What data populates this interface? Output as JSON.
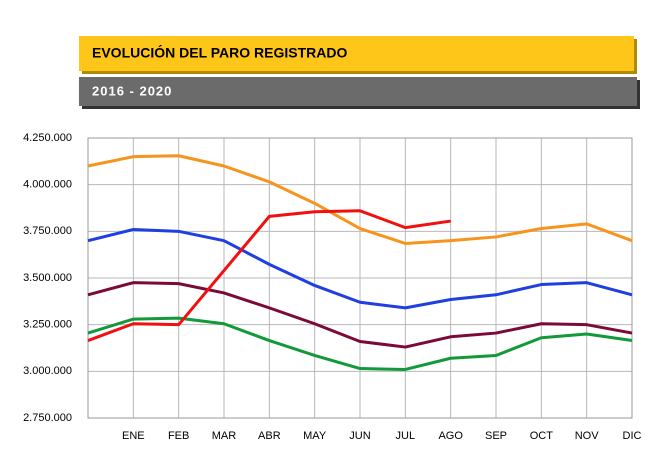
{
  "chart_data": {
    "type": "line",
    "title": "EVOLUCIÓN DEL PARO REGISTRADO",
    "subtitle": "2016 - 2020",
    "categories": [
      null,
      "ENE",
      "FEB",
      "MAR",
      "ABR",
      "MAY",
      "JUN",
      "JUL",
      "AGO",
      "SEP",
      "OCT",
      "NOV",
      "DIC"
    ],
    "series": [
      {
        "color": "#f7941d",
        "values": [
          4100000,
          4150000,
          4155000,
          4100000,
          4015000,
          3900000,
          3765000,
          3685000,
          3700000,
          3720000,
          3765000,
          3790000,
          3700000
        ]
      },
      {
        "color": "#1f3fe0",
        "values": [
          3700000,
          3760000,
          3750000,
          3700000,
          3573000,
          3460000,
          3370000,
          3340000,
          3385000,
          3410000,
          3465000,
          3475000,
          3410000
        ]
      },
      {
        "color": "#7b0a3a",
        "values": [
          3410000,
          3475000,
          3470000,
          3420000,
          3340000,
          3255000,
          3160000,
          3130000,
          3185000,
          3205000,
          3255000,
          3250000,
          3205000
        ]
      },
      {
        "color": "#129a3a",
        "values": [
          3205000,
          3280000,
          3285000,
          3255000,
          3165000,
          3085000,
          3015000,
          3010000,
          3070000,
          3085000,
          3180000,
          3200000,
          3165000
        ]
      },
      {
        "color": "#f01010",
        "values": [
          3165000,
          3255000,
          3250000,
          3540000,
          3830000,
          3855000,
          3860000,
          3770000,
          3805000,
          null,
          null,
          null,
          null
        ]
      }
    ],
    "ylim": [
      2750000,
      4250000
    ],
    "yticks": [
      {
        "value": 2750000,
        "label": "2.750.000"
      },
      {
        "value": 3000000,
        "label": "3.000.000"
      },
      {
        "value": 3250000,
        "label": "3.250.000"
      },
      {
        "value": 3500000,
        "label": "3.500.000"
      },
      {
        "value": 3750000,
        "label": "3.750.000"
      },
      {
        "value": 4000000,
        "label": "4.000.000"
      },
      {
        "value": 4250000,
        "label": "4.250.000"
      }
    ],
    "grid": true
  }
}
